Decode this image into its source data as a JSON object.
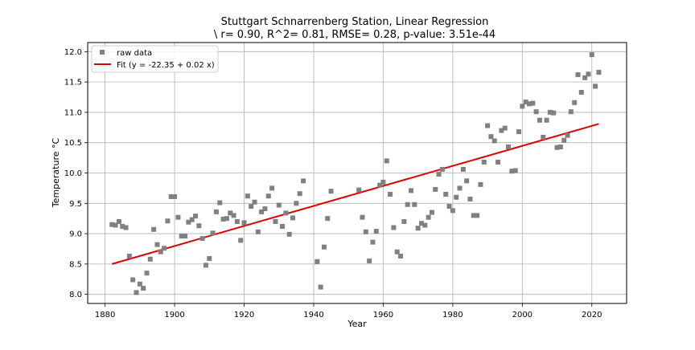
{
  "chart_data": {
    "type": "scatter",
    "title": "Stuttgart Schnarrenberg Station, Linear Regression",
    "subtitle": "\\ r= 0.90, R^2= 0.81, RMSE= 0.28, p-value: 3.51e-44",
    "xlabel": "Year",
    "ylabel": "Temperature °C",
    "xlim": [
      1875,
      2030
    ],
    "ylim": [
      7.85,
      12.15
    ],
    "xticks": [
      1880,
      1900,
      1920,
      1940,
      1960,
      1980,
      2000,
      2020
    ],
    "yticks": [
      8.0,
      8.5,
      9.0,
      9.5,
      10.0,
      10.5,
      11.0,
      11.5,
      12.0
    ],
    "grid": true,
    "legend": {
      "placement": "top-left",
      "entries": [
        "raw data",
        "Fit (y = -22.35 + 0.02 x)"
      ]
    },
    "colors": {
      "points": "#808080",
      "fit": "#e00000",
      "grid": "#b0b0b0"
    },
    "series": [
      {
        "name": "raw data",
        "kind": "scatter",
        "points": [
          [
            1882,
            9.15
          ],
          [
            1883,
            9.14
          ],
          [
            1884,
            9.2
          ],
          [
            1885,
            9.12
          ],
          [
            1886,
            9.1
          ],
          [
            1887,
            8.63
          ],
          [
            1888,
            8.24
          ],
          [
            1889,
            8.03
          ],
          [
            1890,
            8.17
          ],
          [
            1891,
            8.1
          ],
          [
            1892,
            8.35
          ],
          [
            1893,
            8.58
          ],
          [
            1894,
            9.07
          ],
          [
            1895,
            8.82
          ],
          [
            1896,
            8.7
          ],
          [
            1897,
            8.76
          ],
          [
            1898,
            9.21
          ],
          [
            1899,
            9.61
          ],
          [
            1900,
            9.61
          ],
          [
            1901,
            9.27
          ],
          [
            1902,
            8.96
          ],
          [
            1903,
            8.96
          ],
          [
            1904,
            9.19
          ],
          [
            1905,
            9.23
          ],
          [
            1906,
            9.29
          ],
          [
            1907,
            9.13
          ],
          [
            1908,
            8.92
          ],
          [
            1909,
            8.48
          ],
          [
            1910,
            8.59
          ],
          [
            1911,
            9.01
          ],
          [
            1912,
            9.36
          ],
          [
            1913,
            9.51
          ],
          [
            1914,
            9.24
          ],
          [
            1915,
            9.25
          ],
          [
            1916,
            9.34
          ],
          [
            1917,
            9.3
          ],
          [
            1918,
            9.2
          ],
          [
            1919,
            8.89
          ],
          [
            1920,
            9.18
          ],
          [
            1921,
            9.62
          ],
          [
            1922,
            9.45
          ],
          [
            1923,
            9.52
          ],
          [
            1924,
            9.03
          ],
          [
            1925,
            9.36
          ],
          [
            1926,
            9.41
          ],
          [
            1927,
            9.62
          ],
          [
            1928,
            9.75
          ],
          [
            1929,
            9.2
          ],
          [
            1930,
            9.47
          ],
          [
            1931,
            9.12
          ],
          [
            1932,
            9.34
          ],
          [
            1933,
            8.99
          ],
          [
            1934,
            9.26
          ],
          [
            1935,
            9.5
          ],
          [
            1936,
            9.66
          ],
          [
            1937,
            9.87
          ],
          [
            1941,
            8.54
          ],
          [
            1942,
            8.12
          ],
          [
            1943,
            8.78
          ],
          [
            1944,
            9.25
          ],
          [
            1945,
            9.7
          ],
          [
            1953,
            9.72
          ],
          [
            1954,
            9.27
          ],
          [
            1955,
            9.03
          ],
          [
            1956,
            8.55
          ],
          [
            1957,
            8.86
          ],
          [
            1958,
            9.04
          ],
          [
            1959,
            9.8
          ],
          [
            1960,
            9.85
          ],
          [
            1961,
            10.2
          ],
          [
            1962,
            9.65
          ],
          [
            1963,
            9.1
          ],
          [
            1964,
            8.7
          ],
          [
            1965,
            8.63
          ],
          [
            1966,
            9.2
          ],
          [
            1967,
            9.48
          ],
          [
            1968,
            9.71
          ],
          [
            1969,
            9.48
          ],
          [
            1970,
            9.09
          ],
          [
            1971,
            9.17
          ],
          [
            1972,
            9.14
          ],
          [
            1973,
            9.27
          ],
          [
            1974,
            9.35
          ],
          [
            1975,
            9.73
          ],
          [
            1976,
            9.98
          ],
          [
            1977,
            10.06
          ],
          [
            1978,
            9.65
          ],
          [
            1979,
            9.45
          ],
          [
            1980,
            9.38
          ],
          [
            1981,
            9.6
          ],
          [
            1982,
            9.75
          ],
          [
            1983,
            10.06
          ],
          [
            1984,
            9.87
          ],
          [
            1985,
            9.57
          ],
          [
            1986,
            9.3
          ],
          [
            1987,
            9.3
          ],
          [
            1988,
            9.81
          ],
          [
            1989,
            10.18
          ],
          [
            1990,
            10.78
          ],
          [
            1991,
            10.6
          ],
          [
            1992,
            10.53
          ],
          [
            1993,
            10.18
          ],
          [
            1994,
            10.7
          ],
          [
            1995,
            10.74
          ],
          [
            1996,
            10.43
          ],
          [
            1997,
            10.03
          ],
          [
            1998,
            10.04
          ],
          [
            1999,
            10.68
          ],
          [
            2000,
            11.1
          ],
          [
            2001,
            11.17
          ],
          [
            2002,
            11.14
          ],
          [
            2003,
            11.15
          ],
          [
            2004,
            11.01
          ],
          [
            2005,
            10.87
          ],
          [
            2006,
            10.59
          ],
          [
            2007,
            10.87
          ],
          [
            2008,
            11.0
          ],
          [
            2009,
            10.99
          ],
          [
            2010,
            10.42
          ],
          [
            2011,
            10.43
          ],
          [
            2012,
            10.54
          ],
          [
            2013,
            10.62
          ],
          [
            2014,
            11.01
          ],
          [
            2015,
            11.16
          ],
          [
            2016,
            11.62
          ],
          [
            2017,
            11.33
          ],
          [
            2018,
            11.57
          ],
          [
            2019,
            11.63
          ],
          [
            2020,
            11.95
          ],
          [
            2021,
            11.43
          ],
          [
            2022,
            11.66
          ]
        ]
      },
      {
        "name": "Fit (y = -22.35 + 0.02 x)",
        "kind": "line",
        "points": [
          [
            1882,
            8.5
          ],
          [
            2022,
            10.81
          ]
        ]
      }
    ]
  }
}
